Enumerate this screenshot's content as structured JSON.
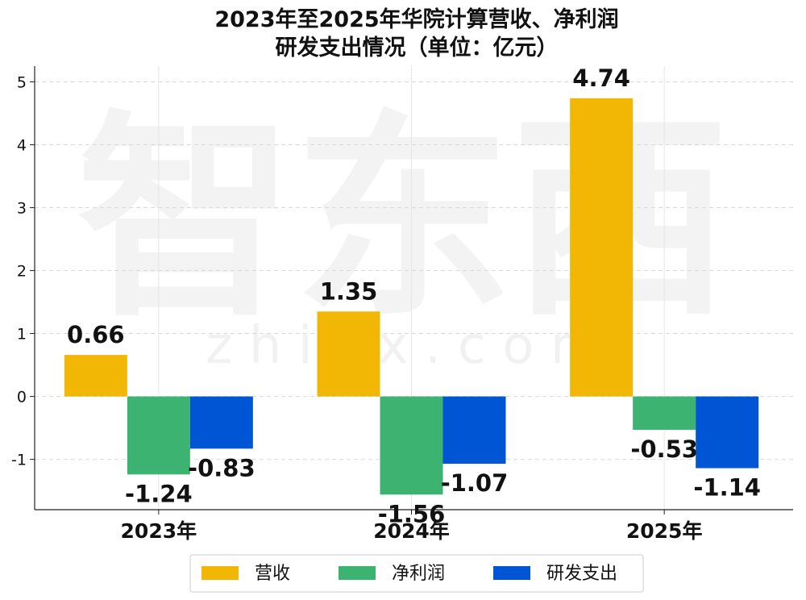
{
  "chart_data": {
    "type": "bar",
    "title_lines": [
      "2023年至2025年华院计算营收、净利润",
      "研发支出情况（单位：亿元）"
    ],
    "categories": [
      "2023年",
      "2024年",
      "2025年"
    ],
    "series": [
      {
        "name": "营收",
        "color": "#F2B705",
        "values": [
          0.66,
          1.35,
          4.74
        ],
        "labels": [
          "0.66",
          "1.35",
          "4.74"
        ]
      },
      {
        "name": "净利润",
        "color": "#3CB371",
        "values": [
          -1.24,
          -1.56,
          -0.53
        ],
        "labels": [
          "-1.24",
          "-1.56",
          "-0.53"
        ]
      },
      {
        "name": "研发支出",
        "color": "#0055D4",
        "values": [
          -0.83,
          -1.07,
          -1.14
        ],
        "labels": [
          "-0.83",
          "-1.07",
          "-1.14"
        ]
      }
    ],
    "ylim": [
      -1.8,
      5.25
    ],
    "yticks": [
      -1,
      0,
      1,
      2,
      3,
      4,
      5
    ],
    "grid": true,
    "legend_position": "bottom-center"
  },
  "watermark": {
    "text": "智东西",
    "sub": "z h i d x . c o m"
  }
}
